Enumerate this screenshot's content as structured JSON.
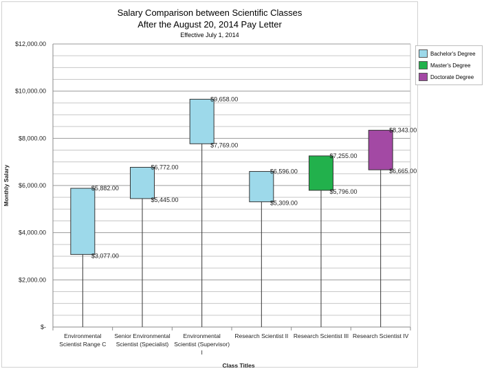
{
  "chart_data": {
    "type": "floating-bar",
    "title_line1": "Salary Comparison between Scientific Classes",
    "title_line2": "After the August 20, 2014 Pay Letter",
    "subtitle": "Effective July 1, 2014",
    "xlabel": "Class Titles",
    "ylabel": "Monthly Salary",
    "ylim": [
      0,
      12000
    ],
    "y_ticks": [
      {
        "value": 0,
        "label": "$-"
      },
      {
        "value": 2000,
        "label": "$2,000.00"
      },
      {
        "value": 4000,
        "label": "$4,000.00"
      },
      {
        "value": 6000,
        "label": "$6,000.00"
      },
      {
        "value": 8000,
        "label": "$8,000.00"
      },
      {
        "value": 10000,
        "label": "$10,000.00"
      },
      {
        "value": 12000,
        "label": "$12,000.00"
      }
    ],
    "minor_grid_step": 500,
    "categories": [
      {
        "lines": [
          "Environmental",
          "Scientist Range C"
        ],
        "low": 3077,
        "high": 5882,
        "low_label": "$3,077.00",
        "high_label": "$5,882.00",
        "series": 0
      },
      {
        "lines": [
          "Senior Environmental",
          "Scientist (Specialist)"
        ],
        "low": 5445,
        "high": 6772,
        "low_label": "$5,445.00",
        "high_label": "$6,772.00",
        "series": 0
      },
      {
        "lines": [
          "Environmental",
          "Scientist (Supervisor)",
          "I"
        ],
        "low": 7769,
        "high": 9658,
        "low_label": "$7,769.00",
        "high_label": "$9,658.00",
        "series": 0
      },
      {
        "lines": [
          "Research Scientist II"
        ],
        "low": 5309,
        "high": 6596,
        "low_label": "$5,309.00",
        "high_label": "$6,596.00",
        "series": 0
      },
      {
        "lines": [
          "Research Scientist III"
        ],
        "low": 5796,
        "high": 7255,
        "low_label": "$5,796.00",
        "high_label": "$7,255.00",
        "series": 1
      },
      {
        "lines": [
          "Research Scientist IV"
        ],
        "low": 6665,
        "high": 8343,
        "low_label": "$6,665.00",
        "high_label": "$8,343.00",
        "series": 2
      }
    ],
    "legend": [
      {
        "name": "Bachelor's Degree",
        "color": "#9dd9ea"
      },
      {
        "name": "Master's Degree",
        "color": "#22b14c"
      },
      {
        "name": "Doctorate Degree",
        "color": "#a349a4"
      }
    ]
  }
}
